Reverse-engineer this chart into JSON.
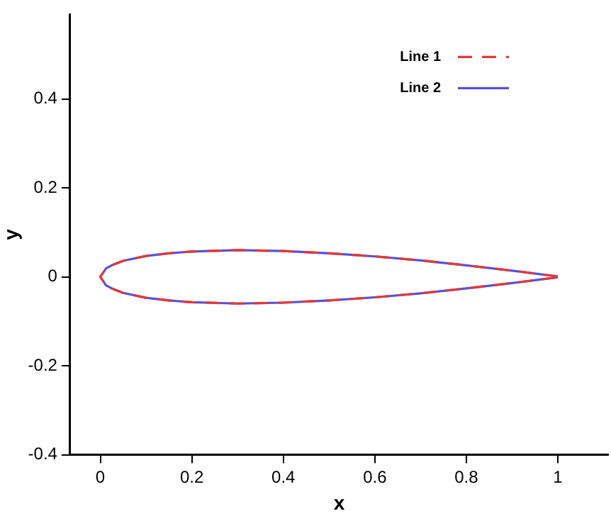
{
  "chart_data": {
    "type": "line",
    "xlabel": "x",
    "ylabel": "y",
    "xlim": [
      -0.066,
      1.11
    ],
    "ylim": [
      -0.4,
      0.59
    ],
    "xticks": [
      0,
      0.2,
      0.4,
      0.6,
      0.8,
      1
    ],
    "yticks": [
      -0.4,
      -0.2,
      0,
      0.2,
      0.4
    ],
    "grid": false,
    "legend": "top right",
    "marker": "none",
    "series": [
      {
        "name": "Line 1",
        "color": "#e03a3a",
        "line_style": "dashed",
        "x": [
          1,
          0.9,
          0.8,
          0.7,
          0.6,
          0.5,
          0.4,
          0.3,
          0.2,
          0.15,
          0.1,
          0.05,
          0.025,
          0.0125,
          0,
          0.0125,
          0.025,
          0.05,
          0.1,
          0.15,
          0.2,
          0.3,
          0.4,
          0.5,
          0.6,
          0.7,
          0.8,
          0.9,
          1
        ],
        "values": [
          0.001,
          0.014,
          0.026,
          0.037,
          0.046,
          0.053,
          0.058,
          0.06,
          0.057,
          0.053,
          0.047,
          0.036,
          0.026,
          0.019,
          0,
          -0.019,
          -0.026,
          -0.036,
          -0.047,
          -0.053,
          -0.057,
          -0.06,
          -0.058,
          -0.053,
          -0.046,
          -0.037,
          -0.026,
          -0.014,
          -0.001
        ]
      },
      {
        "name": "Line 2",
        "color": "#5a4fd6",
        "line_style": "solid",
        "x": [
          1,
          0.9,
          0.8,
          0.7,
          0.6,
          0.5,
          0.4,
          0.3,
          0.2,
          0.15,
          0.1,
          0.05,
          0.025,
          0.0125,
          0,
          0.0125,
          0.025,
          0.05,
          0.1,
          0.15,
          0.2,
          0.3,
          0.4,
          0.5,
          0.6,
          0.7,
          0.8,
          0.9,
          1
        ],
        "values": [
          0.001,
          0.014,
          0.026,
          0.037,
          0.046,
          0.053,
          0.058,
          0.06,
          0.057,
          0.053,
          0.047,
          0.036,
          0.026,
          0.019,
          0,
          -0.019,
          -0.026,
          -0.036,
          -0.047,
          -0.053,
          -0.057,
          -0.06,
          -0.058,
          -0.053,
          -0.046,
          -0.037,
          -0.026,
          -0.014,
          -0.001
        ]
      }
    ]
  }
}
